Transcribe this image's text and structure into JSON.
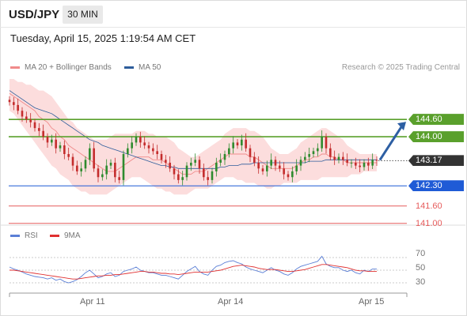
{
  "header": {
    "symbol": "USD/JPY",
    "timeframe": "30 MIN"
  },
  "timestamp": "Tuesday, April 15, 2025 1:19:54 AM CET",
  "legend": {
    "ma20_label": "MA 20 + Bollinger Bands",
    "ma50_label": "MA 50",
    "rsi_label": "RSI",
    "ma9_label": "9MA",
    "credit": "Research © 2025 Trading Central"
  },
  "colors": {
    "bull": "#2e8b2e",
    "bear": "#c42c2c",
    "band": "#fbd7d7",
    "ma20": "#f08a8a",
    "ma50": "#2e5d9b",
    "resistance": "#5aa02c",
    "support_blue": "#1f5bd6",
    "support_red": "#e65b5b",
    "arrow": "#2d5fa3",
    "rsi": "#5b7fd6",
    "rsi_ma": "#e03030",
    "current": "#333333"
  },
  "levels": [
    {
      "label": "144.60",
      "kind": "resistance"
    },
    {
      "label": "144.00",
      "kind": "resistance"
    },
    {
      "label": "143.17",
      "kind": "current"
    },
    {
      "label": "142.30",
      "kind": "support_blue"
    },
    {
      "label": "141.60",
      "kind": "support_red"
    },
    {
      "label": "141.00",
      "kind": "support_red"
    }
  ],
  "rsi_axis": [
    "70",
    "50",
    "30"
  ],
  "x_axis": [
    "Apr 11",
    "Apr 14",
    "Apr 15"
  ],
  "chart_data": {
    "type": "candlestick",
    "series": [
      {
        "name": "MA 20 + Bollinger Bands"
      },
      {
        "name": "MA 50"
      }
    ],
    "price_range": [
      140.8,
      146.0
    ],
    "close": [
      145.2,
      145.1,
      144.9,
      144.7,
      144.6,
      144.5,
      144.3,
      144.2,
      144.0,
      143.8,
      143.9,
      143.6,
      143.7,
      143.4,
      143.3,
      143.0,
      142.8,
      142.9,
      143.2,
      143.6,
      142.9,
      142.6,
      142.7,
      143.0,
      143.1,
      142.6,
      142.5,
      143.4,
      143.6,
      143.8,
      144.0,
      143.8,
      143.7,
      143.6,
      143.5,
      143.4,
      143.2,
      143.1,
      142.9,
      142.7,
      142.5,
      142.6,
      143.0,
      143.1,
      143.2,
      142.9,
      142.6,
      142.5,
      142.8,
      143.1,
      143.2,
      143.4,
      143.6,
      143.8,
      143.7,
      143.9,
      143.6,
      143.3,
      143.1,
      142.9,
      142.8,
      143.0,
      143.2,
      143.0,
      142.9,
      142.7,
      142.6,
      142.8,
      143.0,
      143.2,
      143.3,
      143.4,
      143.5,
      143.6,
      144.0,
      143.6,
      143.3,
      143.2,
      143.3,
      143.2,
      143.1,
      143.1,
      143.0,
      142.95,
      143.1,
      143.0,
      143.2,
      143.17
    ],
    "ma20": [
      145.5,
      145.4,
      145.3,
      145.2,
      145.1,
      145.0,
      144.9,
      144.7,
      144.6,
      144.5,
      144.3,
      144.2,
      144.0,
      143.9,
      143.7,
      143.6,
      143.5,
      143.4,
      143.3,
      143.2,
      143.1,
      143.0,
      142.9,
      142.8,
      142.8,
      142.8,
      142.9,
      143.0,
      143.1,
      143.2,
      143.3,
      143.3,
      143.3,
      143.3,
      143.2,
      143.2,
      143.2,
      143.1,
      143.0,
      142.9,
      142.8,
      142.7,
      142.7,
      142.7,
      142.8,
      142.8,
      142.8,
      142.9,
      143.0,
      143.1,
      143.2,
      143.3,
      143.4,
      143.4,
      143.4,
      143.4,
      143.4,
      143.3,
      143.3,
      143.2,
      143.1,
      143.0,
      142.9,
      142.9,
      142.9,
      142.9,
      142.9,
      142.9,
      143.0,
      143.1,
      143.2,
      143.2,
      143.3,
      143.3,
      143.4,
      143.4,
      143.3,
      143.3,
      143.2,
      143.2,
      143.1,
      143.1,
      143.1,
      143.1,
      143.1,
      143.1,
      143.1,
      143.1
    ],
    "band_upper": [
      146.0,
      146.0,
      145.9,
      145.9,
      145.8,
      145.8,
      145.7,
      145.6,
      145.6,
      145.5,
      145.4,
      145.2,
      145.0,
      144.8,
      144.6,
      144.5,
      144.3,
      144.2,
      144.1,
      144.0,
      143.9,
      143.9,
      143.9,
      143.9,
      144.0,
      144.1,
      144.1,
      144.1,
      144.1,
      144.1,
      144.2,
      144.2,
      144.2,
      144.1,
      144.1,
      144.0,
      144.0,
      144.0,
      143.9,
      143.8,
      143.6,
      143.5,
      143.4,
      143.3,
      143.3,
      143.4,
      143.5,
      143.6,
      143.7,
      143.8,
      143.9,
      144.1,
      144.2,
      144.3,
      144.3,
      144.3,
      144.3,
      144.2,
      144.2,
      144.1,
      144.0,
      143.8,
      143.6,
      143.5,
      143.4,
      143.4,
      143.4,
      143.5,
      143.6,
      143.8,
      143.9,
      144.0,
      144.1,
      144.2,
      144.3,
      144.3,
      144.2,
      144.1,
      144.0,
      143.9,
      143.7,
      143.6,
      143.5,
      143.4,
      143.4,
      143.4,
      143.4,
      143.4
    ],
    "band_lower": [
      144.9,
      144.8,
      144.6,
      144.4,
      144.2,
      144.0,
      143.8,
      143.6,
      143.4,
      143.2,
      143.0,
      142.9,
      142.7,
      142.6,
      142.5,
      142.3,
      142.2,
      142.1,
      142.1,
      142.0,
      142.0,
      142.0,
      142.0,
      142.0,
      142.1,
      142.2,
      142.3,
      142.4,
      142.5,
      142.6,
      142.6,
      142.6,
      142.5,
      142.4,
      142.3,
      142.2,
      142.2,
      142.1,
      142.1,
      142.0,
      142.0,
      142.0,
      142.0,
      142.1,
      142.2,
      142.2,
      142.2,
      142.2,
      142.3,
      142.4,
      142.5,
      142.6,
      142.6,
      142.6,
      142.5,
      142.5,
      142.4,
      142.4,
      142.4,
      142.3,
      142.3,
      142.2,
      142.2,
      142.3,
      142.3,
      142.4,
      142.4,
      142.4,
      142.4,
      142.5,
      142.5,
      142.5,
      142.5,
      142.5,
      142.6,
      142.6,
      142.6,
      142.6,
      142.6,
      142.6,
      142.6,
      142.7,
      142.7,
      142.7,
      142.8,
      142.8,
      142.8,
      142.8
    ],
    "ma50": [
      145.6,
      145.5,
      145.4,
      145.3,
      145.2,
      145.1,
      145.0,
      144.95,
      144.9,
      144.85,
      144.8,
      144.7,
      144.6,
      144.5,
      144.4,
      144.3,
      144.2,
      144.1,
      144.0,
      143.9,
      143.85,
      143.8,
      143.7,
      143.65,
      143.6,
      143.55,
      143.5,
      143.45,
      143.4,
      143.35,
      143.3,
      143.25,
      143.2,
      143.15,
      143.1,
      143.05,
      143.0,
      143.0,
      142.95,
      142.95,
      142.9,
      142.9,
      142.9,
      142.9,
      142.9,
      142.9,
      142.9,
      142.9,
      142.9,
      142.9,
      142.95,
      142.95,
      143.0,
      143.0,
      143.0,
      143.05,
      143.05,
      143.05,
      143.1,
      143.1,
      143.1,
      143.1,
      143.1,
      143.1,
      143.1,
      143.1,
      143.1,
      143.1,
      143.1,
      143.1,
      143.1,
      143.15,
      143.15,
      143.15,
      143.15,
      143.2,
      143.2,
      143.2,
      143.2,
      143.2,
      143.2,
      143.2,
      143.2,
      143.2,
      143.2,
      143.2,
      143.2,
      143.2
    ],
    "rsi": [
      55,
      52,
      50,
      47,
      44,
      42,
      40,
      39,
      38,
      36,
      38,
      34,
      36,
      32,
      30,
      32,
      35,
      40,
      46,
      50,
      44,
      38,
      40,
      44,
      46,
      40,
      42,
      48,
      50,
      52,
      55,
      50,
      48,
      46,
      46,
      44,
      42,
      42,
      40,
      38,
      36,
      42,
      48,
      52,
      56,
      48,
      44,
      42,
      50,
      56,
      58,
      62,
      64,
      65,
      62,
      60,
      55,
      52,
      50,
      48,
      46,
      50,
      54,
      50,
      48,
      44,
      42,
      46,
      52,
      56,
      58,
      60,
      62,
      64,
      72,
      60,
      56,
      54,
      54,
      50,
      48,
      50,
      46,
      44,
      50,
      48,
      52,
      52
    ],
    "rsi_ma": [
      50,
      50,
      49,
      48,
      47,
      46,
      45,
      44,
      43,
      42,
      41,
      40,
      39,
      38,
      37,
      36,
      36,
      37,
      38,
      39,
      40,
      41,
      41,
      42,
      42,
      43,
      43,
      44,
      45,
      46,
      47,
      48,
      48,
      47,
      47,
      46,
      45,
      45,
      44,
      44,
      43,
      44,
      45,
      46,
      47,
      47,
      47,
      47,
      48,
      49,
      50,
      52,
      54,
      56,
      57,
      58,
      57,
      56,
      55,
      53,
      52,
      51,
      51,
      51,
      50,
      49,
      48,
      48,
      49,
      50,
      51,
      53,
      55,
      57,
      59,
      59,
      58,
      57,
      56,
      55,
      54,
      52,
      50,
      49,
      49,
      48,
      48,
      48
    ],
    "rsi_range": [
      20,
      80
    ]
  }
}
